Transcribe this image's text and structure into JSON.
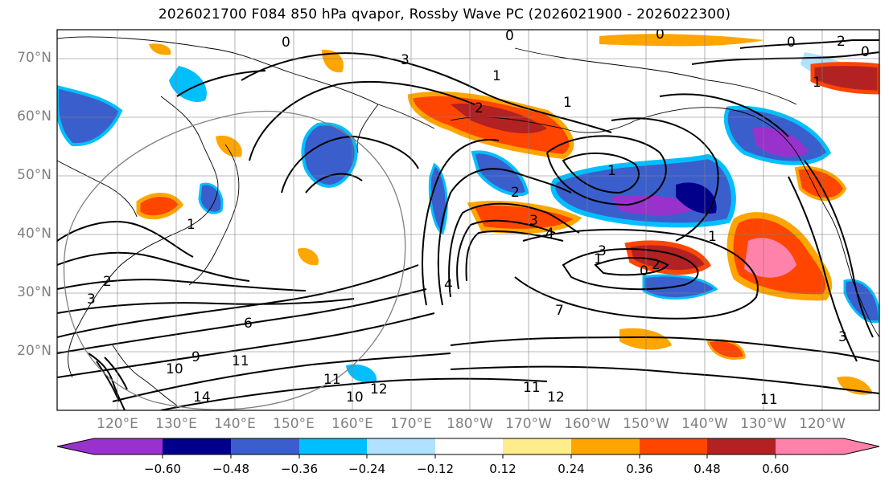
{
  "title": "2026021700 F084 850 hPa qvapor, Rossby Wave PC (2026021900 - 2026022300)",
  "lat_labels": [
    "70°N",
    "60°N",
    "50°N",
    "40°N",
    "30°N",
    "20°N"
  ],
  "lon_labels": [
    "120°E",
    "130°E",
    "140°E",
    "150°E",
    "160°E",
    "170°E",
    "180°W",
    "170°W",
    "160°W",
    "150°W",
    "140°W",
    "130°W",
    "120°W"
  ],
  "colorbar": {
    "tick_labels": [
      "−0.60",
      "−0.48",
      "−0.36",
      "−0.24",
      "−0.12",
      "0.12",
      "0.24",
      "0.36",
      "0.48",
      "0.60"
    ],
    "colors": [
      "#9932cc",
      "#00008b",
      "#3a5fcd",
      "#00bfff",
      "#b0e2ff",
      "#ffffff",
      "#ffec8b",
      "#ffa500",
      "#ff4500",
      "#b22222",
      "#ff82ab"
    ]
  },
  "contour_labels": [
    "0",
    "0",
    "0",
    "0",
    "0",
    "0",
    "1",
    "1",
    "1",
    "1",
    "1",
    "1",
    "1",
    "2",
    "2",
    "2",
    "2",
    "2",
    "3",
    "3",
    "3",
    "3",
    "3",
    "4",
    "4",
    "6",
    "7",
    "9",
    "10",
    "10",
    "11",
    "11",
    "11",
    "12",
    "12",
    "14",
    "11"
  ]
}
